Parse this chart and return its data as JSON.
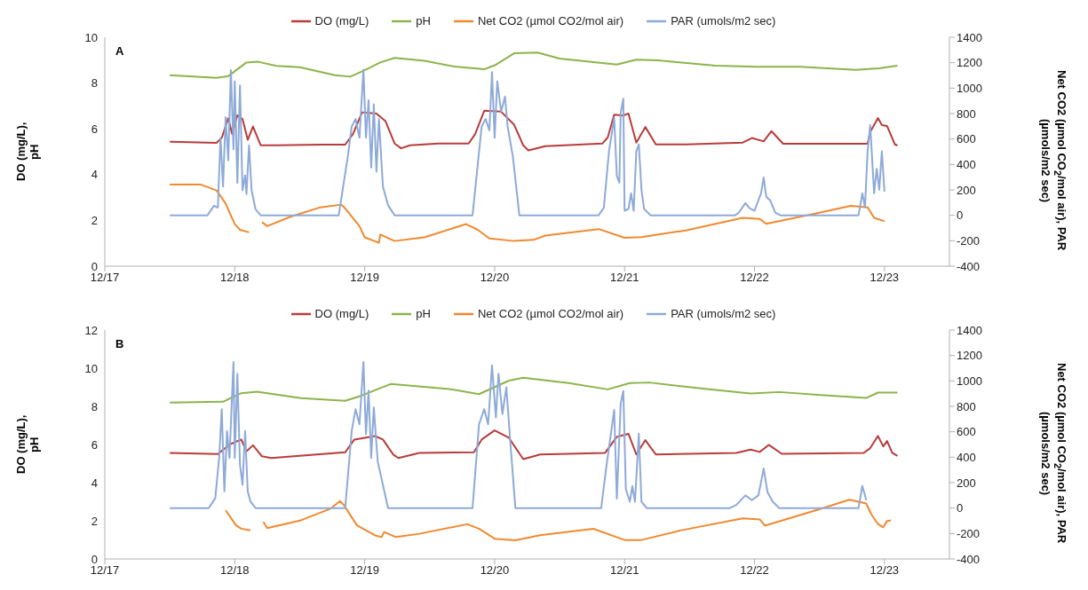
{
  "chart_data": [
    {
      "type": "line",
      "ylabel": "DO (mg/L), pH",
      "y2label": "Net CO2 (µmol CO$_{2}$/mol air), PAR (µmols/m2 sec)",
      "annotations": [
        "A"
      ],
      "legend": "top",
      "grid": false,
      "xlim": [
        "--12-17",
        "--12-23T12:00"
      ],
      "xticks": [
        {
          "value": "--12-17",
          "label": "12/17"
        },
        {
          "value": "--12-18",
          "label": "12/18"
        },
        {
          "value": "--12-19",
          "label": "12/19"
        },
        {
          "value": "--12-20",
          "label": "12/20"
        },
        {
          "value": "--12-21",
          "label": "12/21"
        },
        {
          "value": "--12-22",
          "label": "12/22"
        },
        {
          "value": "--12-23",
          "label": "12/23"
        }
      ],
      "ylim": [
        0,
        10
      ],
      "yticks": [
        0,
        2,
        4,
        6,
        8,
        10
      ],
      "y2lim": [
        -400,
        1400
      ],
      "y2ticks": [
        -400,
        -200,
        0,
        200,
        400,
        600,
        800,
        1000,
        1200,
        1400
      ],
      "series": [
        {
          "name": "DO (mg/L)",
          "color": "#b83c3a",
          "x": [
            "--12-17T12:00",
            "--12-17T20:38",
            "--12-17T21:36",
            "--12-17T22:48",
            "--12-17T23:31",
            "--12-18T00:29",
            "--12-18T01:26",
            "--12-18T02:24",
            "--12-18T03:22",
            "--12-18T04:48",
            "--12-18T07:41",
            "--12-18T15:50",
            "--12-18T20:24",
            "--12-18T21:50",
            "--12-18T23:31",
            "--12-19T02:10",
            "--12-19T03:50",
            "--12-19T05:31",
            "--12-19T06:43",
            "--12-19T08:24",
            "--12-19T13:41",
            "--12-19T19:12",
            "--12-19T20:24",
            "--12-19T22:05",
            "--12-20T01:12",
            "--12-20T03:36",
            "--12-20T05:17",
            "--12-20T06:14",
            "--12-20T09:22",
            "--12-20T19:55",
            "--12-20T20:53",
            "--12-20T22:05",
            "--12-20T23:46",
            "--12-21T00:43",
            "--12-21T02:10",
            "--12-21T03:50",
            "--12-21T05:46",
            "--12-21T11:31",
            "--12-21T21:50",
            "--12-21T23:31",
            "--12-22T01:41",
            "--12-22T03:07",
            "--12-22T05:17",
            "--12-22T08:24",
            "--12-22T20:53",
            "--12-22T21:22",
            "--12-22T22:48",
            "--12-22T23:31",
            "--12-23T00:29",
            "--12-23T01:55",
            "--12-23T02:24"
          ],
          "values": [
            5.44,
            5.39,
            5.61,
            6.46,
            5.77,
            6.59,
            6.43,
            5.52,
            6.1,
            5.28,
            5.28,
            5.31,
            5.31,
            5.77,
            6.72,
            6.67,
            6.34,
            5.36,
            5.15,
            5.28,
            5.36,
            5.36,
            5.77,
            6.79,
            6.75,
            6.18,
            5.28,
            5.06,
            5.24,
            5.36,
            5.62,
            6.62,
            6.58,
            6.67,
            5.4,
            6.08,
            5.32,
            5.32,
            5.4,
            5.6,
            5.45,
            5.9,
            5.35,
            5.35,
            5.35,
            5.86,
            6.47,
            6.16,
            6.12,
            5.32,
            5.27
          ]
        },
        {
          "name": "pH",
          "color": "#8cb44a",
          "x": [
            "--12-17T12:00",
            "--12-17T20:38",
            "--12-17T22:48",
            "--12-18T02:10",
            "--12-18T04:19",
            "--12-18T07:41",
            "--12-18T12:00",
            "--12-18T18:29",
            "--12-18T21:22",
            "--12-19T00:00",
            "--12-19T02:53",
            "--12-19T05:31",
            "--12-19T11:02",
            "--12-19T16:34",
            "--12-19T22:05",
            "--12-20T00:14",
            "--12-20T03:36",
            "--12-20T07:55",
            "--12-20T12:00",
            "--12-20T22:34",
            "--12-21T02:10",
            "--12-21T06:14",
            "--12-21T16:48",
            "--12-22T00:29",
            "--12-22T08:24",
            "--12-22T18:43",
            "--12-22T23:02",
            "--12-23T02:24"
          ],
          "values": [
            8.34,
            8.23,
            8.3,
            8.9,
            8.93,
            8.75,
            8.69,
            8.34,
            8.28,
            8.56,
            8.9,
            9.1,
            8.97,
            8.72,
            8.6,
            8.8,
            9.3,
            9.33,
            9.07,
            8.81,
            9.02,
            8.99,
            8.76,
            8.71,
            8.71,
            8.58,
            8.64,
            8.76
          ]
        },
        {
          "name": "Net CO2 (µmol CO2/mol air)",
          "color": "#f0892f",
          "axis": "y2",
          "x": [
            "--12-17T12:00",
            "--12-17T17:46",
            "--12-17T20:38",
            "--12-17T22:19",
            "--12-18T00:00",
            "--12-18T00:58",
            "--12-18T02:38",
            "--12-18T03:50",
            "--12-18T05:02",
            "--12-18T06:00",
            "--12-18T10:19",
            "--12-18T15:50",
            "--12-18T19:41",
            "--12-18T20:24",
            "--12-18T23:02",
            "--12-19T00:00",
            "--12-19T02:38",
            "--12-19T02:53",
            "--12-19T05:31",
            "--12-19T11:02",
            "--12-19T18:43",
            "--12-19T20:53",
            "--12-19T23:02",
            "--12-20T03:36",
            "--12-20T07:12",
            "--12-20T09:22",
            "--12-20T19:12",
            "--12-21T00:00",
            "--12-21T03:07",
            "--12-21T11:31",
            "--12-21T21:50",
            "--12-22T00:58",
            "--12-22T02:10",
            "--12-22T11:02",
            "--12-22T17:46",
            "--12-22T20:53",
            "--12-22T22:05",
            "--12-23T00:00"
          ],
          "values": [
            241,
            241,
            196,
            93,
            -69,
            -114,
            -134,
            null,
            -54,
            -85,
            -11,
            63,
            84,
            54,
            -85,
            -173,
            -216,
            -152,
            -202,
            -173,
            -69,
            -114,
            -182,
            -202,
            -193,
            -159,
            -108,
            -177,
            -171,
            -117,
            -20,
            -29,
            -67,
            12,
            75,
            63,
            -20,
            -47
          ]
        },
        {
          "name": "PAR (umols/m2 sec)",
          "color": "#8eaad8",
          "axis": "y2",
          "x": [
            "--12-17T12:00",
            "--12-17T18:58",
            "--12-17T20:10",
            "--12-17T20:53",
            "--12-17T21:22",
            "--12-17T21:50",
            "--12-17T22:19",
            "--12-17T22:48",
            "--12-17T23:17",
            "--12-17T23:46",
            "--12-18T00:00",
            "--12-18T00:29",
            "--12-18T00:58",
            "--12-18T01:26",
            "--12-18T01:55",
            "--12-18T02:10",
            "--12-18T02:38",
            "--12-18T03:07",
            "--12-18T03:50",
            "--12-18T04:48",
            "--12-18T19:12",
            "--12-18T20:53",
            "--12-18T21:36",
            "--12-18T22:19",
            "--12-18T23:02",
            "--12-18T23:46",
            "--12-19T00:14",
            "--12-19T00:43",
            "--12-19T01:12",
            "--12-19T01:41",
            "--12-19T02:10",
            "--12-19T02:38",
            "--12-19T03:22",
            "--12-19T04:19",
            "--12-19T05:31",
            "--12-19T19:55",
            "--12-19T21:36",
            "--12-19T22:19",
            "--12-19T23:02",
            "--12-19T23:31",
            "--12-20T00:00",
            "--12-20T00:29",
            "--12-20T01:12",
            "--12-20T01:55",
            "--12-20T02:24",
            "--12-20T03:22",
            "--12-20T04:34",
            "--12-20T19:12",
            "--12-20T20:10",
            "--12-20T21:07",
            "--12-20T22:05",
            "--12-20T22:34",
            "--12-20T23:02",
            "--12-20T23:17",
            "--12-20T23:46",
            "--12-21T00:00",
            "--12-21T00:43",
            "--12-21T01:12",
            "--12-21T01:41",
            "--12-21T02:10",
            "--12-21T02:38",
            "--12-21T03:07",
            "--12-21T03:36",
            "--12-21T04:48",
            "--12-21T20:24",
            "--12-21T21:07",
            "--12-21T22:19",
            "--12-21T23:02",
            "--12-22T00:00",
            "--12-22T01:12",
            "--12-22T01:41",
            "--12-22T02:10",
            "--12-22T02:53",
            "--12-22T03:50",
            "--12-22T04:48",
            "--12-22T19:12",
            "--12-22T19:55",
            "--12-22T20:24",
            "--12-22T20:53",
            "--12-22T21:22",
            "--12-22T22:05",
            "--12-22T22:34",
            "--12-22T23:02",
            "--12-22T23:31",
            "--12-23T00:00"
          ],
          "values": [
            0,
            0,
            75,
            60,
            610,
            226,
            772,
            432,
            1141,
            520,
            1053,
            255,
            1022,
            196,
            314,
            167,
            550,
            196,
            48,
            0,
            0,
            462,
            698,
            757,
            610,
            1146,
            610,
            905,
            374,
            874,
            343,
            757,
            226,
            79,
            0,
            0,
            698,
            757,
            668,
            1126,
            610,
            1053,
            815,
            934,
            698,
            462,
            0,
            0,
            60,
            503,
            765,
            311,
            256,
            806,
            916,
            36,
            50,
            173,
            36,
            503,
            558,
            201,
            50,
            0,
            0,
            22,
            96,
            58,
            36,
            173,
            297,
            146,
            118,
            22,
            0,
            0,
            173,
            63,
            503,
            710,
            173,
            366,
            201,
            503,
            187
          ]
        }
      ]
    },
    {
      "type": "line",
      "ylabel": "DO (mg/L), pH",
      "y2label": "Net CO2 (µmol CO$_{2}$/mol air), PAR (µmols/m2 sec)",
      "annotations": [
        "B"
      ],
      "legend": "top",
      "grid": false,
      "xlim": [
        "--12-17",
        "--12-23T12:00"
      ],
      "xticks": [
        {
          "value": "--12-17",
          "label": "12/17"
        },
        {
          "value": "--12-18",
          "label": "12/18"
        },
        {
          "value": "--12-19",
          "label": "12/19"
        },
        {
          "value": "--12-20",
          "label": "12/20"
        },
        {
          "value": "--12-21",
          "label": "12/21"
        },
        {
          "value": "--12-22",
          "label": "12/22"
        },
        {
          "value": "--12-23",
          "label": "12/23"
        }
      ],
      "ylim": [
        0,
        12
      ],
      "yticks": [
        0,
        2,
        4,
        6,
        8,
        10,
        12
      ],
      "y2lim": [
        -400,
        1400
      ],
      "y2ticks": [
        -400,
        -200,
        0,
        200,
        400,
        600,
        800,
        1000,
        1200,
        1400
      ],
      "series": [
        {
          "name": "DO (mg/L)",
          "color": "#b83c3a",
          "x": [
            "--12-17T12:00",
            "--12-17T20:53",
            "--12-17T23:02",
            "--12-18T01:12",
            "--12-18T02:10",
            "--12-18T03:22",
            "--12-18T05:02",
            "--12-18T06:43",
            "--12-18T20:24",
            "--12-18T22:05",
            "--12-19T01:55",
            "--12-19T03:22",
            "--12-19T05:17",
            "--12-19T06:14",
            "--12-19T10:05",
            "--12-19T20:10",
            "--12-19T21:36",
            "--12-20T00:00",
            "--12-20T02:38",
            "--12-20T05:17",
            "--12-20T08:24",
            "--12-20T20:24",
            "--12-20T22:34",
            "--12-21T00:43",
            "--12-21T02:10",
            "--12-21T03:50",
            "--12-21T05:46",
            "--12-21T20:38",
            "--12-21T23:17",
            "--12-22T00:58",
            "--12-22T02:38",
            "--12-22T05:02",
            "--12-22T20:10",
            "--12-22T21:22",
            "--12-22T22:48",
            "--12-22T23:46",
            "--12-23T00:29",
            "--12-23T01:26",
            "--12-23T02:24"
          ],
          "values": [
            5.56,
            5.5,
            6.0,
            6.26,
            5.64,
            5.96,
            5.38,
            5.29,
            5.59,
            6.26,
            6.44,
            6.26,
            5.47,
            5.29,
            5.56,
            5.59,
            6.26,
            6.74,
            6.35,
            5.23,
            5.48,
            5.56,
            6.4,
            6.56,
            5.48,
            6.23,
            5.48,
            5.56,
            5.73,
            5.61,
            5.98,
            5.51,
            5.56,
            5.81,
            6.45,
            5.9,
            6.18,
            5.56,
            5.4
          ]
        },
        {
          "name": "pH",
          "color": "#8cb44a",
          "x": [
            "--12-17T12:00",
            "--12-17T21:50",
            "--12-18T01:12",
            "--12-18T04:05",
            "--12-18T12:14",
            "--12-18T20:24",
            "--12-18T23:17",
            "--12-19T04:48",
            "--12-19T15:36",
            "--12-19T21:07",
            "--12-20T02:38",
            "--12-20T05:17",
            "--12-20T13:41",
            "--12-20T20:53",
            "--12-21T00:58",
            "--12-21T04:34",
            "--12-21T15:36",
            "--12-21T23:17",
            "--12-22T04:34",
            "--12-22T12:14",
            "--12-22T20:38",
            "--12-22T22:48",
            "--12-23T02:24"
          ],
          "values": [
            8.2,
            8.24,
            8.69,
            8.77,
            8.43,
            8.29,
            8.55,
            9.17,
            8.91,
            8.64,
            9.35,
            9.5,
            9.22,
            8.89,
            9.22,
            9.25,
            8.89,
            8.67,
            8.75,
            8.59,
            8.44,
            8.72,
            8.72
          ]
        },
        {
          "name": "Net CO2 (µmol CO2/mol air)",
          "color": "#f0892f",
          "axis": "y2",
          "x": [
            "--12-17T22:19",
            "--12-18T00:14",
            "--12-18T01:12",
            "--12-18T02:53",
            "--12-18T04:05",
            "--12-18T05:17",
            "--12-18T06:00",
            "--12-18T12:14",
            "--12-18T17:46",
            "--12-18T19:26",
            "--12-18T20:10",
            "--12-18T22:34",
            "--12-19T01:55",
            "--12-19T03:07",
            "--12-19T03:36",
            "--12-19T05:46",
            "--12-19T10:05",
            "--12-19T18:58",
            "--12-19T21:07",
            "--12-20T00:00",
            "--12-20T03:50",
            "--12-20T08:24",
            "--12-20T18:14",
            "--12-21T00:00",
            "--12-21T03:07",
            "--12-21T10:19",
            "--12-21T21:50",
            "--12-22T00:58",
            "--12-22T01:55",
            "--12-22T12:14",
            "--12-22T17:31",
            "--12-22T20:38",
            "--12-22T21:36",
            "--12-22T22:48",
            "--12-22T23:46",
            "--12-23T00:29",
            "--12-23T01:12"
          ],
          "values": [
            -16,
            -136,
            -162,
            -175,
            null,
            -109,
            -157,
            -96,
            -3,
            55,
            23,
            -136,
            -215,
            -228,
            -188,
            -228,
            -202,
            -127,
            -162,
            -241,
            -254,
            -213,
            -163,
            -251,
            -251,
            -176,
            -81,
            -89,
            -138,
            -6,
            66,
            36,
            -51,
            -126,
            -151,
            -101,
            -96
          ]
        },
        {
          "name": "PAR (umols/m2 sec)",
          "color": "#8eaad8",
          "axis": "y2",
          "x": [
            "--12-17T12:00",
            "--12-17T19:12",
            "--12-17T20:24",
            "--12-17T21:07",
            "--12-17T21:36",
            "--12-17T22:05",
            "--12-17T22:34",
            "--12-17T23:02",
            "--12-17T23:17",
            "--12-17T23:46",
            "--12-18T00:00",
            "--12-18T00:29",
            "--12-18T00:58",
            "--12-18T01:26",
            "--12-18T01:55",
            "--12-18T02:24",
            "--12-18T02:53",
            "--12-18T03:50",
            "--12-18T20:24",
            "--12-18T21:36",
            "--12-18T22:19",
            "--12-18T23:02",
            "--12-18T23:46",
            "--12-19T00:14",
            "--12-19T00:43",
            "--12-19T01:12",
            "--12-19T01:41",
            "--12-19T02:24",
            "--12-19T03:22",
            "--12-19T04:19",
            "--12-19T19:55",
            "--12-19T21:07",
            "--12-19T22:05",
            "--12-19T22:48",
            "--12-19T23:31",
            "--12-20T00:14",
            "--12-20T00:43",
            "--12-20T01:26",
            "--12-20T02:10",
            "--12-20T02:53",
            "--12-20T03:50",
            "--12-20T19:41",
            "--12-20T20:38",
            "--12-20T21:36",
            "--12-20T22:05",
            "--12-20T22:34",
            "--12-20T23:17",
            "--12-20T23:46",
            "--12-21T00:14",
            "--12-21T00:58",
            "--12-21T01:26",
            "--12-21T01:55",
            "--12-21T02:38",
            "--12-21T03:07",
            "--12-21T04:05",
            "--12-21T19:26",
            "--12-21T20:38",
            "--12-21T22:19",
            "--12-21T23:31",
            "--12-22T00:43",
            "--12-22T01:41",
            "--12-22T02:24",
            "--12-22T03:22",
            "--12-22T04:34",
            "--12-22T19:12",
            "--12-22T19:55",
            "--12-22T20:24",
            "--12-22T20:38"
          ],
          "values": [
            0,
            0,
            77,
            394,
            778,
            132,
            606,
            394,
            659,
            1149,
            394,
            1056,
            341,
            183,
            606,
            132,
            53,
            0,
            0,
            606,
            778,
            659,
            1149,
            580,
            924,
            394,
            791,
            368,
            183,
            0,
            0,
            659,
            778,
            659,
            1122,
            712,
            1056,
            739,
            950,
            527,
            0,
            0,
            324,
            623,
            772,
            75,
            822,
            921,
            149,
            50,
            174,
            50,
            585,
            50,
            0,
            0,
            25,
            100,
            62,
            100,
            311,
            125,
            50,
            0,
            0,
            174,
            100,
            62
          ]
        }
      ]
    }
  ]
}
